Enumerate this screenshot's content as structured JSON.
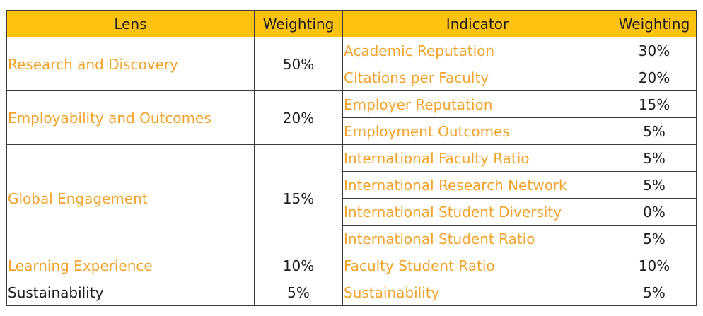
{
  "headers": {
    "lens": "Lens",
    "lens_weighting": "Weighting",
    "indicator": "Indicator",
    "indicator_weighting": "Weighting"
  },
  "lenses": [
    {
      "name": "Research and Discovery",
      "weighting": "50%",
      "indicators": [
        {
          "name": "Academic Reputation",
          "weighting": "30%"
        },
        {
          "name": "Citations per Faculty",
          "weighting": "20%"
        }
      ]
    },
    {
      "name": "Employability and Outcomes",
      "weighting": "20%",
      "indicators": [
        {
          "name": "Employer Reputation",
          "weighting": "15%"
        },
        {
          "name": "Employment Outcomes",
          "weighting": "5%"
        }
      ]
    },
    {
      "name": "Global Engagement",
      "weighting": "15%",
      "indicators": [
        {
          "name": "International Faculty Ratio",
          "weighting": "5%"
        },
        {
          "name": "International Research Network",
          "weighting": "5%"
        },
        {
          "name": "International Student Diversity",
          "weighting": "0%"
        },
        {
          "name": "International Student Ratio",
          "weighting": "5%"
        }
      ]
    },
    {
      "name": "Learning Experience",
      "weighting": "10%",
      "indicators": [
        {
          "name": "Faculty Student Ratio",
          "weighting": "10%"
        }
      ]
    },
    {
      "name": "Sustainability",
      "weighting": "5%",
      "indicators": [
        {
          "name": "Sustainability",
          "weighting": "5%"
        }
      ]
    }
  ],
  "colors": {
    "header_bg": "#ffc20e",
    "accent_text": "#f2a32b",
    "body_text": "#1e1e1e"
  }
}
